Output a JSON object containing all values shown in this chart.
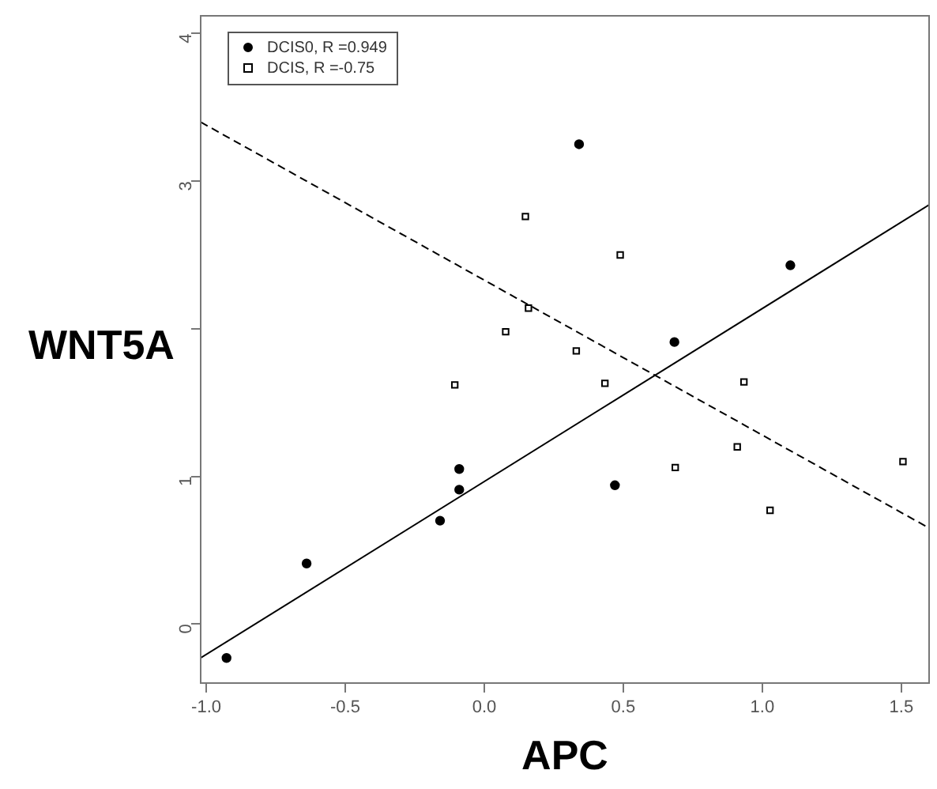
{
  "chart_data": {
    "type": "scatter",
    "xlabel": "APC",
    "ylabel": "WNT5A",
    "legend": "top left",
    "grid": false,
    "xlim": [
      -1.02,
      1.6
    ],
    "ylim": [
      -0.4,
      4.12
    ],
    "xticks": [
      {
        "value": -1,
        "label": "-1.0"
      },
      -0.5,
      {
        "value": 0,
        "label": "0.0"
      },
      0.5,
      {
        "value": 1,
        "label": "1.0"
      },
      1.5
    ],
    "yticks": [
      0,
      1,
      {
        "value": 2,
        "label": null
      },
      3,
      4
    ],
    "series": [
      {
        "name": "DCIS0, R =0.949",
        "color": "#000000",
        "marker": "circle",
        "x": [
          -0.927,
          -0.639,
          -0.159,
          -0.09,
          -0.09,
          0.47,
          0.684,
          1.101,
          0.341
        ],
        "values": [
          -0.23,
          0.41,
          0.7,
          1.05,
          0.91,
          0.94,
          1.91,
          2.43,
          3.25
        ]
      },
      {
        "name": "DCIS, R =-0.75",
        "color": "#000000",
        "marker": "square",
        "x": [
          0.148,
          0.489,
          0.159,
          0.077,
          0.331,
          -0.106,
          0.434,
          0.934,
          0.91,
          0.687,
          1.028,
          1.506
        ],
        "values": [
          2.76,
          2.5,
          2.14,
          1.98,
          1.85,
          1.62,
          1.63,
          1.64,
          1.2,
          1.06,
          0.77,
          1.1
        ]
      },
      {
        "type": "line",
        "color": "#000000",
        "line_style": "solid",
        "marker": "none",
        "x": [
          -1.02,
          1.6
        ],
        "values": [
          -0.23,
          2.84
        ]
      },
      {
        "type": "line",
        "color": "#000000",
        "line_style": "dashed",
        "marker": "none",
        "x": [
          -1.02,
          1.6
        ],
        "values": [
          3.4,
          0.65
        ]
      }
    ]
  }
}
